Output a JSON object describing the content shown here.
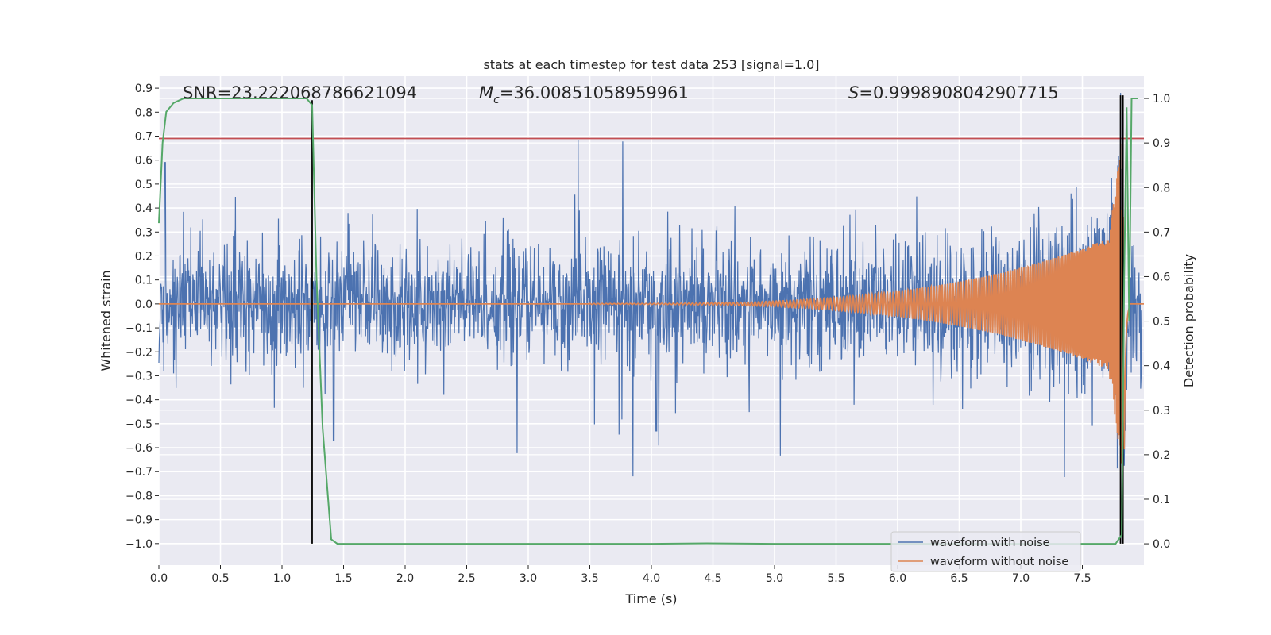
{
  "chart_data": {
    "type": "line",
    "title": "stats at each timestep for test data 253 [signal=1.0]",
    "xlabel": "Time (s)",
    "ylabel": "Whitened strain",
    "y2label": "Detection probability",
    "xlim": [
      0.0,
      8.0
    ],
    "ylim": [
      -1.09,
      0.95
    ],
    "y2lim": [
      -0.048,
      1.05
    ],
    "xticks": [
      "0.0",
      "0.5",
      "1.0",
      "1.5",
      "2.0",
      "2.5",
      "3.0",
      "3.5",
      "4.0",
      "4.5",
      "5.0",
      "5.5",
      "6.0",
      "6.5",
      "7.0",
      "7.5"
    ],
    "yticks": [
      "0.9",
      "0.8",
      "0.7",
      "0.6",
      "0.5",
      "0.4",
      "0.3",
      "0.2",
      "0.1",
      "0.0",
      "-0.1",
      "-0.2",
      "-0.3",
      "-0.4",
      "-0.5",
      "-0.6",
      "-0.7",
      "-0.8",
      "-0.9",
      "-1.0"
    ],
    "y2ticks": [
      "0.0",
      "0.1",
      "0.2",
      "0.3",
      "0.4",
      "0.5",
      "0.6",
      "0.7",
      "0.8",
      "0.9",
      "1.0"
    ],
    "stats": {
      "snr_label": "SNR=23.222068786621094",
      "mc_symbol": "M",
      "mc_subscript": "c",
      "mc_value": "=36.00851058959961",
      "s_symbol": "S",
      "s_value": "=0.9998908042907715"
    },
    "threshold": {
      "value": 0.69,
      "color": "#c44e52"
    },
    "vertical_markers": [
      {
        "x": 1.245,
        "y_from": -1.0,
        "y_to": 0.85,
        "color": "#000000"
      },
      {
        "x": 7.81,
        "y_from": -1.0,
        "y_to": 0.87,
        "color": "#000000"
      },
      {
        "x": 7.83,
        "y_from": -1.0,
        "y_to": 0.87,
        "color": "#000000"
      }
    ],
    "series": [
      {
        "name": "waveform with noise",
        "color": "#4c72b0",
        "axis": "left",
        "description": "whitened noisy strain, mostly within [-0.45, 0.45], spikes near t=0.05 (0.59), t=1.25 and t=7.8"
      },
      {
        "name": "waveform without noise",
        "color": "#dd8452",
        "axis": "left",
        "description": "chirp signal rising from ~0 at t=4.0 to ~0.30 amplitude by t=7.78, merger peak ~0.75 at t=7.84",
        "chirp": {
          "t_start": 3.5,
          "t_merger": 7.84,
          "amp_start": 0.002,
          "amp_end": 0.3,
          "peak": 0.75
        }
      },
      {
        "name": "detection probability",
        "color": "#55a868",
        "axis": "right",
        "x": [
          0.0,
          0.03,
          0.06,
          0.12,
          0.2,
          1.2,
          1.245,
          1.28,
          1.33,
          1.4,
          1.45,
          1.5,
          2.0,
          3.0,
          4.0,
          4.45,
          5.0,
          6.0,
          7.0,
          7.77,
          7.82,
          7.84,
          7.86,
          7.88,
          7.9,
          7.95
        ],
        "y": [
          0.72,
          0.9,
          0.97,
          0.99,
          1.0,
          1.0,
          0.985,
          0.6,
          0.26,
          0.01,
          0.0,
          0.0,
          0.0,
          0.0,
          0.0,
          0.001,
          0.0,
          0.0,
          0.0,
          0.0,
          0.02,
          0.6,
          0.98,
          0.5,
          1.0,
          1.0
        ]
      }
    ],
    "legend": {
      "position": "bottom-right",
      "entries": [
        "waveform with noise",
        "waveform without noise"
      ]
    }
  }
}
